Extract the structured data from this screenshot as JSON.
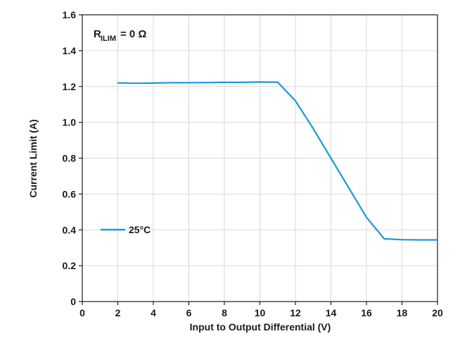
{
  "chart_data": {
    "type": "line",
    "title": "",
    "xlabel": "Input to Output Differential (V)",
    "ylabel": "Current Limit (A)",
    "xlim": [
      0,
      20
    ],
    "ylim": [
      0,
      1.6
    ],
    "xticks": [
      0,
      2,
      4,
      6,
      8,
      10,
      12,
      14,
      16,
      18,
      20
    ],
    "yticks": [
      0,
      0.2,
      0.4,
      0.6,
      0.8,
      1.0,
      1.2,
      1.4,
      1.6
    ],
    "ytick_labels": [
      "0",
      "0.2",
      "0.4",
      "0.6",
      "0.8",
      "1.0",
      "1.2",
      "1.4",
      "1.6"
    ],
    "grid": true,
    "legend_position": "left",
    "annotation": {
      "main": "R",
      "subscript": "ILIM",
      "value": "= 0 Ω"
    },
    "series": [
      {
        "name": "25°C",
        "color": "#1a9bd7",
        "x": [
          2,
          3,
          4,
          5,
          6,
          7,
          8,
          9,
          10,
          11,
          12,
          13,
          14,
          15,
          16,
          17,
          18,
          19,
          20
        ],
        "y": [
          1.22,
          1.218,
          1.219,
          1.221,
          1.221,
          1.222,
          1.223,
          1.223,
          1.225,
          1.224,
          1.12,
          0.965,
          0.8,
          0.635,
          0.47,
          0.35,
          0.345,
          0.344,
          0.344
        ]
      }
    ]
  }
}
